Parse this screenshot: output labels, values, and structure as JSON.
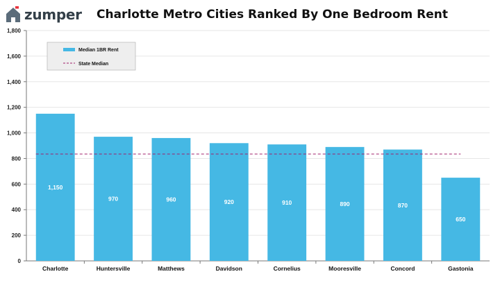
{
  "brand": {
    "name": "zumper",
    "icon": "house-icon",
    "accent": "#e8323c",
    "text_color": "#333f48"
  },
  "chart_data": {
    "type": "bar",
    "title": "Charlotte Metro Cities Ranked By One Bedroom Rent",
    "xlabel": "",
    "ylabel": "",
    "categories": [
      "Charlotte",
      "Huntersville",
      "Matthews",
      "Davidson",
      "Cornelius",
      "Mooresville",
      "Concord",
      "Gastonia"
    ],
    "series": [
      {
        "name": "Median 1BR Rent",
        "values": [
          1150,
          970,
          960,
          920,
          910,
          890,
          870,
          650
        ],
        "color": "#45b8e4"
      }
    ],
    "value_labels": [
      "1,150",
      "970",
      "960",
      "920",
      "910",
      "890",
      "870",
      "650"
    ],
    "reference_line": {
      "name": "State Median",
      "value": 835,
      "style": "dashed",
      "color": "#a0206b"
    },
    "ylim": [
      0,
      1800
    ],
    "yticks": [
      0,
      200,
      400,
      600,
      800,
      1000,
      1200,
      1400,
      1600,
      1800
    ],
    "ytick_labels": [
      "0",
      "200",
      "400",
      "600",
      "800",
      "1,000",
      "1,200",
      "1,400",
      "1,600",
      "1,800"
    ],
    "grid": true,
    "legend": {
      "position": "top-left",
      "entries": [
        "Median 1BR Rent",
        "State Median"
      ]
    }
  }
}
